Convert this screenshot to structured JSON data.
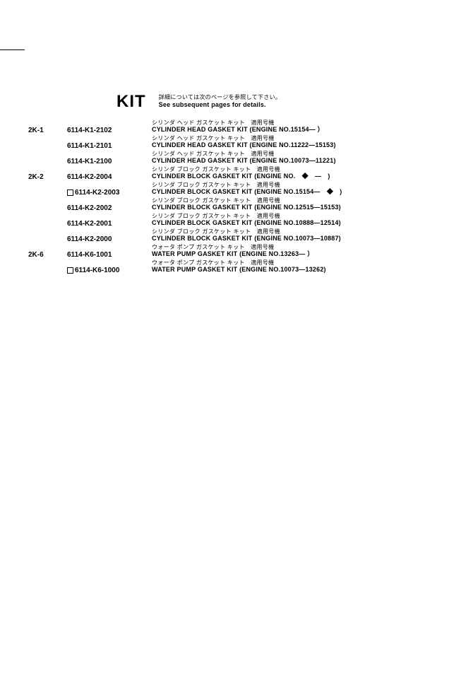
{
  "header": {
    "kit_label": "KIT",
    "jp_note": "詳細については次のページを参照して下さい。",
    "en_note": "See subsequent pages for details."
  },
  "rows": [
    {
      "code": "2K-1",
      "part": "6114-K1-2102",
      "checkbox": false,
      "jp": "シリンダ ヘッド ガスケット キット　適用号機",
      "en": "CYLINDER HEAD GASKET KIT (ENGINE NO.15154— ）"
    },
    {
      "code": "",
      "part": "6114-K1-2101",
      "checkbox": false,
      "jp": "シリンダ ヘッド ガスケット キット　適用号機",
      "en": "CYLINDER HEAD GASKET KIT (ENGINE NO.11222—15153)"
    },
    {
      "code": "",
      "part": "6114-K1-2100",
      "checkbox": false,
      "jp": "シリンダ ヘッド ガスケット キット　適用号機",
      "en": "CYLINDER HEAD GASKET KIT (ENGINE NO.10073—11221)"
    },
    {
      "code": "2K-2",
      "part": "6114-K2-2004",
      "checkbox": false,
      "jp": "シリンダ ブロック ガスケット キット　適用号機",
      "en": "CYLINDER BLOCK GASKET KIT (ENGINE NO.　◆　—　)"
    },
    {
      "code": "",
      "part": "6114-K2-2003",
      "checkbox": true,
      "jp": "シリンダ ブロック ガスケット キット　適用号機",
      "en": "CYLINDER BLOCK GASKET KIT (ENGINE NO.15154—　◆　)"
    },
    {
      "code": "",
      "part": "6114-K2-2002",
      "checkbox": false,
      "jp": "シリンダ ブロック ガスケット キット　適用号機",
      "en": "CYLINDER BLOCK GASKET KIT (ENGINE NO.12515—15153)"
    },
    {
      "code": "",
      "part": "6114-K2-2001",
      "checkbox": false,
      "jp": "シリンダ ブロック ガスケット キット　適用号機",
      "en": "CYLINDER BLOCK GASKET KIT (ENGINE NO.10888—12514)"
    },
    {
      "code": "",
      "part": "6114-K2-2000",
      "checkbox": false,
      "jp": "シリンダ ブロック ガスケット キット　適用号機",
      "en": "CYLINDER BLOCK GASKET KIT (ENGINE NO.10073—10887)"
    },
    {
      "code": "2K-6",
      "part": "6114-K6-1001",
      "checkbox": false,
      "jp": "ウォータ ポンプ ガスケット キット　適用号機",
      "en": "WATER PUMP GASKET KIT (ENGINE NO.13263— ）"
    },
    {
      "code": "",
      "part": "6114-K6-1000",
      "checkbox": true,
      "jp": "ウォータ ポンプ ガスケット キット　適用号機",
      "en": "WATER PUMP GASKET KIT (ENGINE NO.10073—13262)"
    }
  ]
}
